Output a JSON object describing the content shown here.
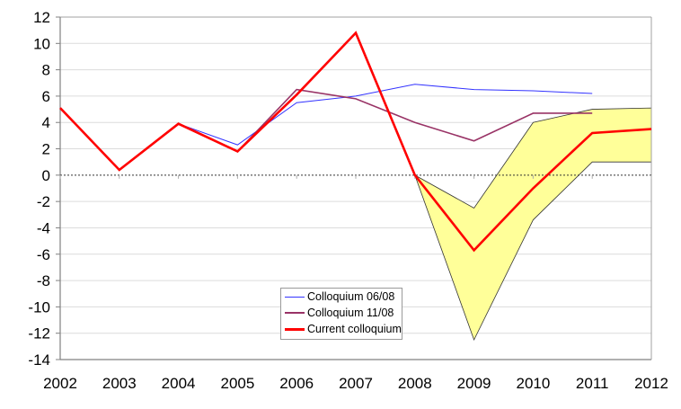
{
  "chart_data": {
    "type": "line",
    "title": "",
    "xlabel": "",
    "ylabel": "",
    "x": [
      2002,
      2003,
      2004,
      2005,
      2006,
      2007,
      2008,
      2009,
      2010,
      2011,
      2012
    ],
    "ylim": [
      -14,
      12
    ],
    "yticks": [
      12,
      10,
      8,
      6,
      4,
      2,
      0,
      -2,
      -4,
      -6,
      -8,
      -10,
      -12,
      -14
    ],
    "grid": true,
    "zero_line": "dotted",
    "legend_position": "inside-bottom-center",
    "series": [
      {
        "name": "Colloquium 06/08",
        "color": "#3333ff",
        "width": 1,
        "values": [
          5.1,
          0.4,
          3.9,
          2.3,
          5.5,
          6.0,
          6.9,
          6.5,
          6.4,
          6.2,
          null
        ]
      },
      {
        "name": "Colloquium 11/08",
        "color": "#993366",
        "width": 1.6,
        "values": [
          5.1,
          0.4,
          3.9,
          1.8,
          6.5,
          5.8,
          4.0,
          2.6,
          4.7,
          4.7,
          null
        ]
      },
      {
        "name": "Current colloquium",
        "color": "#ff0000",
        "width": 2.6,
        "values": [
          5.1,
          0.4,
          3.9,
          1.8,
          6.1,
          10.8,
          0.0,
          -5.7,
          -1.0,
          3.2,
          3.5
        ]
      }
    ],
    "band": {
      "name": "Uncertainty range",
      "color": "#ffff99",
      "x": [
        2008,
        2009,
        2010,
        2011,
        2012
      ],
      "upper": [
        0.0,
        -2.5,
        4.0,
        5.0,
        5.1
      ],
      "lower": [
        0.0,
        -12.5,
        -3.4,
        1.0,
        1.0
      ]
    }
  },
  "legend": {
    "items": [
      {
        "label": "Colloquium 06/08",
        "color": "#3333ff"
      },
      {
        "label": "Colloquium 11/08",
        "color": "#993366"
      },
      {
        "label": "Current colloquium",
        "color": "#ff0000"
      }
    ]
  }
}
